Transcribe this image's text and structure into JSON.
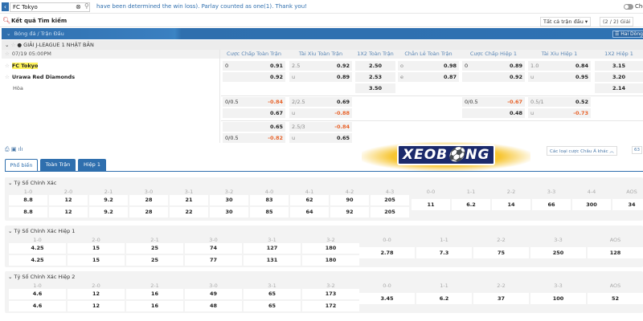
{
  "topbar": {
    "search_value": "FC Tokyo",
    "marquee": "have been determined the win loss). Parlay counted as one(1). Thank you!",
    "toggle_label": "Che"
  },
  "results": {
    "title": "Kết quả Tìm kiếm",
    "filter": "Tất cả trận đấu ▾",
    "league_count": "(2 / 2) Giải"
  },
  "category": {
    "label": "Bóng đá / Trận Đấu",
    "view_button": "☰ Hai Dòng"
  },
  "league": {
    "name": "GIẢI J-LEAGUE 1 NHẬT BẢN"
  },
  "match": {
    "time": "07/19 05:00PM",
    "home": "FC Tokyo",
    "away": "Urawa Red Diamonds",
    "draw": "Hòa"
  },
  "columns": [
    "Cược Chấp Toàn Trận",
    "Tài Xỉu Toàn Trận",
    "1X2 Toàn Trận",
    "Chẵn Lẻ Toàn Trận",
    "Cược Chấp Hiệp 1",
    "Tài Xỉu Hiệp 1",
    "1X2 Hiệp 1"
  ],
  "odds_main": {
    "hdp": [
      [
        "0",
        "0.91"
      ],
      [
        "",
        "0.92"
      ]
    ],
    "ou": [
      [
        "2.5",
        "0.92"
      ],
      [
        "u",
        "0.89"
      ]
    ],
    "x12": [
      "2.50",
      "2.53",
      "3.50"
    ],
    "oe": [
      [
        "o",
        "0.98"
      ],
      [
        "e",
        "0.87"
      ]
    ],
    "hdp1": [
      [
        "0",
        "0.89"
      ],
      [
        "",
        "0.92"
      ]
    ],
    "ou1": [
      [
        "1.0",
        "0.84"
      ],
      [
        "u",
        "0.95"
      ]
    ],
    "x12h1": [
      "3.15",
      "3.20",
      "2.14"
    ]
  },
  "odds_alt1": {
    "hdp": [
      [
        "0/0.5",
        "-0.84"
      ],
      [
        "",
        "0.67"
      ]
    ],
    "ou": [
      [
        "2/2.5",
        "0.69"
      ],
      [
        "u",
        "-0.88"
      ]
    ],
    "hdp1": [
      [
        "0/0.5",
        "-0.67"
      ],
      [
        "",
        "0.48"
      ]
    ],
    "ou1": [
      [
        "0.5/1",
        "0.52"
      ],
      [
        "u",
        "-0.73"
      ]
    ]
  },
  "odds_alt2": {
    "hdp": [
      [
        "",
        "0.65"
      ],
      [
        "0/0.5",
        "-0.82"
      ]
    ],
    "ou": [
      [
        "2.5/3",
        "-0.84"
      ],
      [
        "u",
        "0.65"
      ]
    ]
  },
  "toolbar": {
    "other_bets": "Các loại cược Châu Á khác ︿",
    "other_count": "63"
  },
  "tabs": [
    "Phổ biến",
    "Toàn Trận",
    "Hiệp 1"
  ],
  "sections": [
    {
      "title": "Tỷ Số Chính Xác",
      "home_labels": [
        "1-0",
        "2-0",
        "2-1",
        "3-0",
        "3-1",
        "3-2",
        "4-0",
        "4-1",
        "4-2",
        "4-3"
      ],
      "home_row": [
        "8.8",
        "12",
        "9.2",
        "28",
        "21",
        "30",
        "83",
        "62",
        "90",
        "205"
      ],
      "away_row": [
        "8.8",
        "12",
        "9.2",
        "28",
        "22",
        "30",
        "85",
        "64",
        "92",
        "205"
      ],
      "draw_labels": [
        "0-0",
        "1-1",
        "2-2",
        "3-3",
        "4-4",
        "AOS"
      ],
      "draw_row": [
        "11",
        "6.2",
        "14",
        "66",
        "300",
        "34"
      ]
    },
    {
      "title": "Tỷ Số Chính Xác Hiệp 1",
      "home_labels": [
        "1-0",
        "2-0",
        "2-1",
        "3-0",
        "3-1",
        "3-2"
      ],
      "home_row": [
        "4.25",
        "15",
        "25",
        "74",
        "127",
        "180"
      ],
      "away_row": [
        "4.25",
        "15",
        "25",
        "77",
        "131",
        "180"
      ],
      "draw_labels": [
        "0-0",
        "1-1",
        "2-2",
        "3-3",
        "AOS"
      ],
      "draw_row": [
        "2.78",
        "7.3",
        "75",
        "250",
        "128"
      ]
    },
    {
      "title": "Tỷ Số Chính Xác Hiệp 2",
      "home_labels": [
        "1-0",
        "2-0",
        "2-1",
        "3-0",
        "3-1",
        "3-2"
      ],
      "home_row": [
        "4.6",
        "12",
        "16",
        "49",
        "65",
        "173"
      ],
      "away_row": [
        "4.6",
        "12",
        "16",
        "48",
        "65",
        "172"
      ],
      "draw_labels": [
        "0-0",
        "1-1",
        "2-2",
        "3-3",
        "AOS"
      ],
      "draw_row": [
        "3.45",
        "6.2",
        "37",
        "100",
        "52"
      ]
    }
  ],
  "watermark": {
    "text": "XEOBONG"
  },
  "colors": {
    "accent": "#2f6fae",
    "negative": "#e8632a",
    "highlight": "#fff35c"
  }
}
